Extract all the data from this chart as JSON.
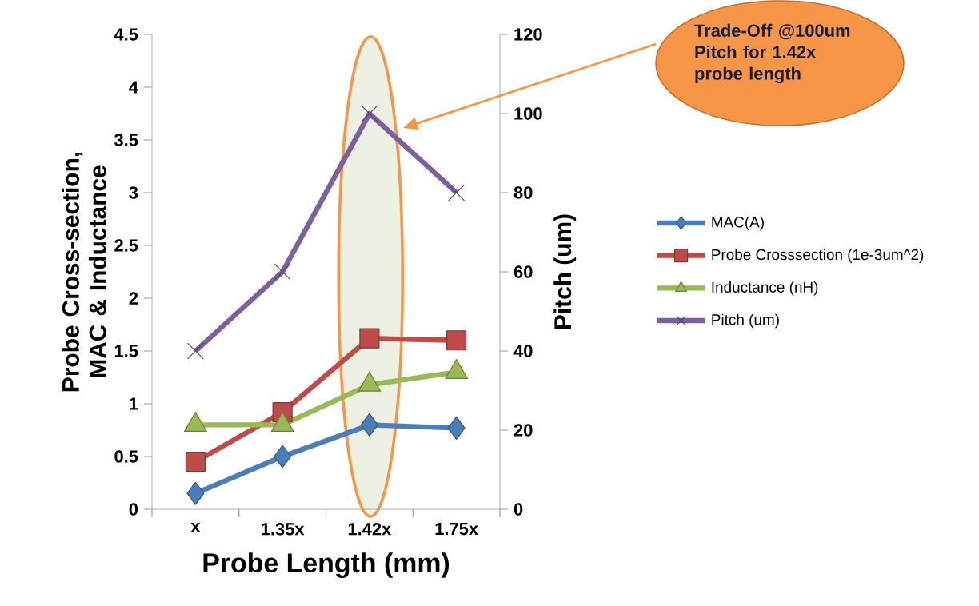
{
  "chart_data": {
    "type": "line",
    "xlabel": "Probe Length (mm)",
    "ylabel": "Probe Cross-section, MAC & Inductance",
    "y2label": "Pitch (um)",
    "categories": [
      "x",
      "1.35x",
      "1.42x",
      "1.75x"
    ],
    "series": [
      {
        "name": "MAC(A)",
        "color": "#4a7ebb",
        "marker": "diamond",
        "values": [
          0.15,
          0.5,
          0.8,
          0.77
        ]
      },
      {
        "name": "Probe Crosssection (1e-3um^2)",
        "color": "#be4b48",
        "marker": "square",
        "values": [
          0.45,
          0.92,
          1.62,
          1.6
        ]
      },
      {
        "name": "Inductance (nH)",
        "color": "#98b954",
        "marker": "triangle",
        "values": [
          0.8,
          0.8,
          1.18,
          1.3
        ]
      },
      {
        "name": "Pitch (um)",
        "color": "#7d60a0",
        "marker": "cross",
        "axis": "y2",
        "values": [
          40,
          60,
          100,
          80
        ]
      }
    ],
    "ylim": [
      0,
      4.5
    ],
    "yticks": [
      0,
      0.5,
      1,
      1.5,
      2,
      2.5,
      3,
      3.5,
      4,
      4.5
    ],
    "y2lim": [
      0,
      120
    ],
    "y2ticks": [
      0,
      20,
      40,
      60,
      80,
      100,
      120
    ],
    "annotations": [
      "Trade-Off @100um Pitch for 1.42x probe length"
    ],
    "grid": false,
    "legend": "right",
    "line_style": "solid"
  }
}
